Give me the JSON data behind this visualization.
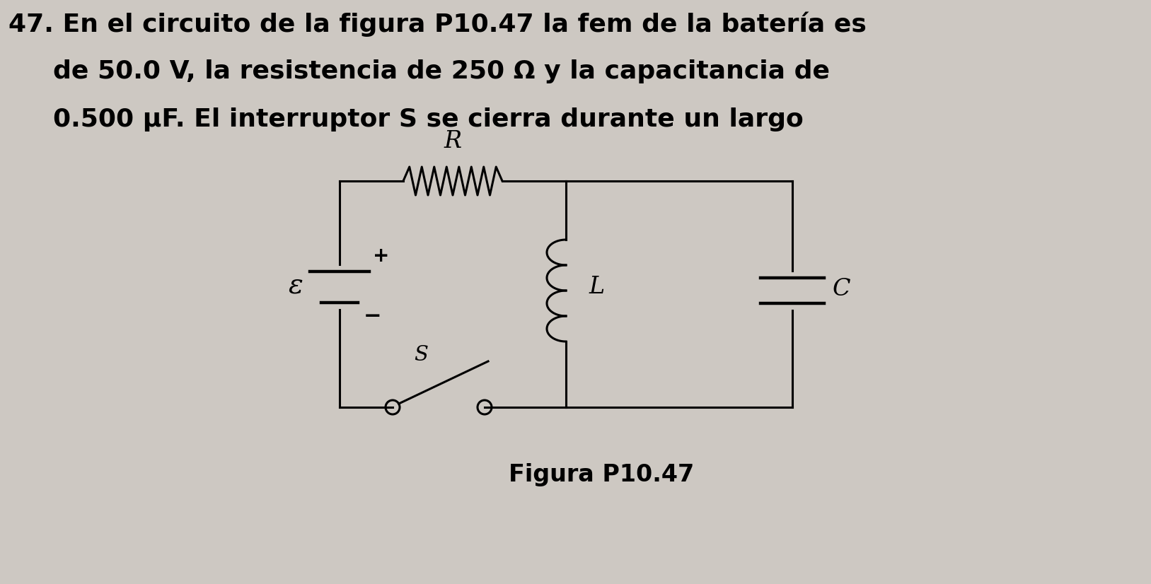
{
  "background_color": "#cdc8c2",
  "text_lines": [
    "47. En el circuito de la figura P10.47 la fem de la batería es",
    "de 50.0 V, la resistencia de 250 Ω y la capacitancia de",
    "0.500 μF. El interruptor S se cierra durante un largo"
  ],
  "figure_label": "Figura P10.47",
  "circuit": {
    "battery_label": "ε",
    "plus_label": "+",
    "minus_label": "−",
    "resistor_label": "R",
    "inductor_label": "L",
    "capacitor_label": "C",
    "switch_label": "S"
  },
  "title_fontsize": 26,
  "label_fontsize": 22,
  "figure_label_fontsize": 24
}
